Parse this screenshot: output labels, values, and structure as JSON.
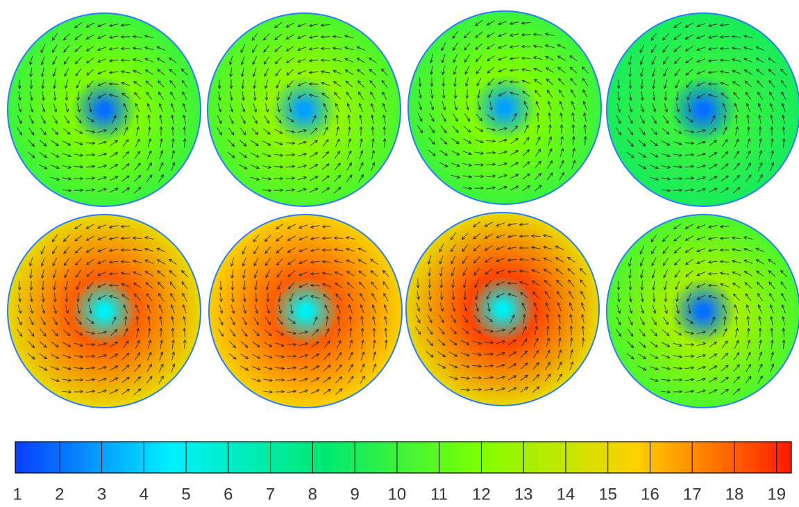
{
  "chart_data": {
    "type": "contour",
    "panels": [
      {
        "values": [
          2,
          12,
          10
        ]
      },
      {
        "values": [
          3,
          12.5,
          10.5
        ]
      },
      {
        "values": [
          3,
          12,
          10
        ]
      },
      {
        "values": [
          2,
          10,
          9
        ]
      },
      {
        "values": [
          5,
          18,
          15
        ]
      },
      {
        "values": [
          5,
          18,
          15.5
        ]
      },
      {
        "values": [
          5,
          18.5,
          15
        ]
      },
      {
        "values": [
          2,
          13,
          10.5
        ]
      }
    ],
    "clim": [
      0.95,
      19.35
    ],
    "colors": [
      "#0a3cff",
      "#00f0ff",
      "#00e870",
      "#80ff00",
      "#ffd000",
      "#ff1a00"
    ],
    "ticks": [
      1,
      2,
      3,
      4,
      5,
      6,
      7,
      8,
      9,
      10,
      11,
      12,
      13,
      14,
      15,
      16,
      17,
      18,
      19
    ]
  }
}
